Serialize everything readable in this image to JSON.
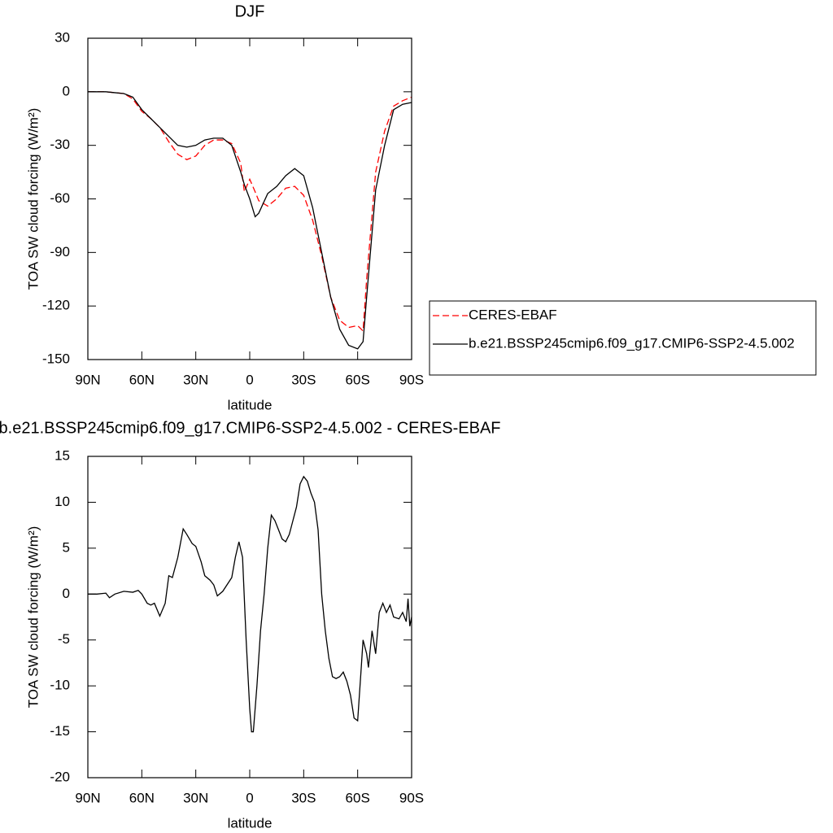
{
  "chart_data": [
    {
      "type": "line",
      "title": "DJF",
      "xlabel": "latitude",
      "ylabel": "TOA SW cloud forcing (W/m²)",
      "x": [
        90,
        85,
        80,
        75,
        70,
        65,
        60,
        55,
        50,
        45,
        40,
        35,
        30,
        25,
        20,
        15,
        10,
        5,
        3,
        0,
        -3,
        -5,
        -10,
        -15,
        -20,
        -25,
        -30,
        -35,
        -40,
        -45,
        -50,
        -55,
        -60,
        -63,
        -65,
        -70,
        -75,
        -80,
        -85,
        -90
      ],
      "series": [
        {
          "name": "CERES-EBAF",
          "color": "#ff0000",
          "style": "dashed",
          "values": [
            0,
            0,
            0,
            -0.5,
            -1,
            -4,
            -11,
            -15,
            -20,
            -28,
            -35,
            -38,
            -36,
            -30,
            -27,
            -27,
            -29,
            -40,
            -56,
            -49,
            -56,
            -61,
            -64,
            -60,
            -54,
            -53,
            -58,
            -72,
            -92,
            -115,
            -128,
            -132,
            -131,
            -134,
            -105,
            -45,
            -22,
            -8,
            -5,
            -3
          ]
        },
        {
          "name": "b.e21.BSSP245cmip6.f09_g17.CMIP6-SSP2-4.5.002",
          "color": "#000000",
          "style": "solid",
          "values": [
            0,
            0,
            0,
            -0.5,
            -1,
            -3,
            -10,
            -15,
            -20,
            -25,
            -30,
            -31,
            -30,
            -27,
            -26,
            -26,
            -30,
            -45,
            -52,
            -60,
            -70,
            -68,
            -57,
            -53,
            -47,
            -43,
            -47,
            -65,
            -90,
            -115,
            -133,
            -142,
            -144,
            -140,
            -115,
            -55,
            -30,
            -10,
            -7,
            -6
          ]
        }
      ],
      "xlim": [
        90,
        -90
      ],
      "xticks": [
        {
          "value": 90,
          "label": "90N"
        },
        {
          "value": 60,
          "label": "60N"
        },
        {
          "value": 30,
          "label": "30N"
        },
        0,
        {
          "value": -30,
          "label": "30S"
        },
        {
          "value": -60,
          "label": "60S"
        },
        {
          "value": -90,
          "label": "90S"
        }
      ],
      "ylim": [
        -150,
        30
      ],
      "yticks": [
        30,
        0,
        -30,
        -60,
        -90,
        -120,
        -150
      ],
      "legend": "right"
    },
    {
      "type": "line",
      "title": "b.e21.BSSP245cmip6.f09_g17.CMIP6-SSP2-4.5.002 - CERES-EBAF",
      "xlabel": "latitude",
      "ylabel": "TOA SW cloud forcing (W/m²)",
      "x": [
        90,
        85,
        80,
        78,
        75,
        70,
        65,
        62,
        60,
        57,
        55,
        53,
        50,
        47,
        45,
        43,
        40,
        37,
        35,
        32,
        30,
        27,
        25,
        22,
        20,
        18,
        15,
        10,
        8,
        6,
        4,
        2,
        0,
        -1,
        -2,
        -4,
        -6,
        -8,
        -10,
        -12,
        -14,
        -16,
        -18,
        -20,
        -22,
        -24,
        -26,
        -28,
        -30,
        -32,
        -34,
        -36,
        -38,
        -40,
        -42,
        -44,
        -46,
        -48,
        -50,
        -52,
        -54,
        -56,
        -58,
        -60,
        -62,
        -63,
        -65,
        -66,
        -68,
        -70,
        -72,
        -74,
        -76,
        -78,
        -80,
        -83,
        -85,
        -87,
        -88,
        -89,
        -90
      ],
      "series": [
        {
          "name": null,
          "color": "#000000",
          "style": "solid",
          "values": [
            0,
            0,
            0.1,
            -0.4,
            0,
            0.3,
            0.2,
            0.4,
            0,
            -1,
            -1.2,
            -1,
            -2.4,
            -1,
            2,
            1.8,
            4,
            7.1,
            6.5,
            5.5,
            5.2,
            3.5,
            2,
            1.5,
            1,
            -0.2,
            0.3,
            1.8,
            4,
            5.7,
            4,
            -5,
            -12.5,
            -15,
            -15,
            -10,
            -4,
            0,
            5,
            8.6,
            8,
            7,
            6,
            5.7,
            6.5,
            8,
            9.5,
            12,
            12.8,
            12.3,
            11,
            10,
            7,
            0,
            -4,
            -7,
            -9,
            -9.2,
            -9,
            -8.5,
            -9.5,
            -11,
            -13.5,
            -13.8,
            -8,
            -5,
            -6.5,
            -8,
            -4,
            -6.5,
            -2,
            -1,
            -2,
            -1.2,
            -2.5,
            -2.7,
            -2,
            -3,
            -0.5,
            -3.5,
            -2.5
          ]
        }
      ],
      "xlim": [
        90,
        -90
      ],
      "xticks": [
        {
          "value": 90,
          "label": "90N"
        },
        {
          "value": 60,
          "label": "60N"
        },
        {
          "value": 30,
          "label": "30N"
        },
        0,
        {
          "value": -30,
          "label": "30S"
        },
        {
          "value": -60,
          "label": "60S"
        },
        {
          "value": -90,
          "label": "90S"
        }
      ],
      "ylim": [
        -20,
        15
      ],
      "yticks": [
        15,
        10,
        5,
        0,
        -5,
        -10,
        -15,
        -20
      ]
    }
  ]
}
